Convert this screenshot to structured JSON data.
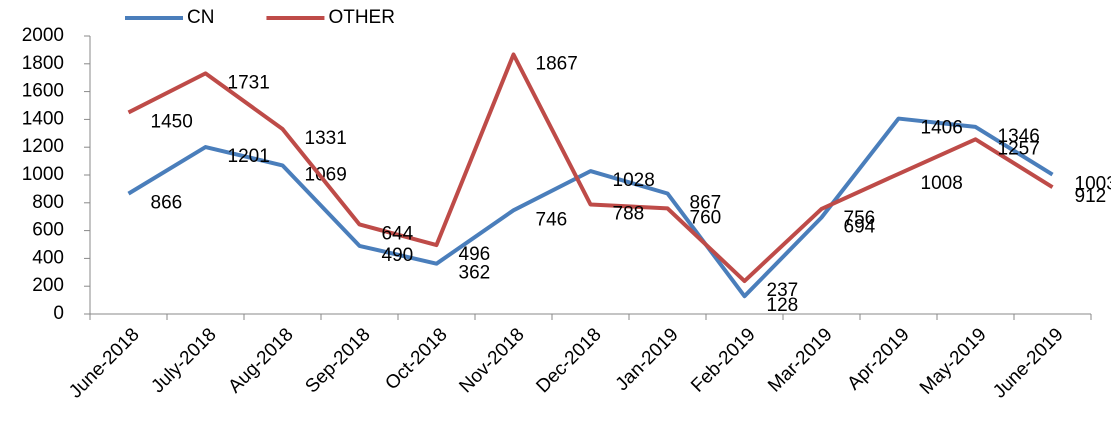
{
  "chart_data": {
    "type": "line",
    "categories": [
      "June-2018",
      "July-2018",
      "Aug-2018",
      "Sep-2018",
      "Oct-2018",
      "Nov-2018",
      "Dec-2018",
      "Jan-2019",
      "Feb-2019",
      "Mar-2019",
      "Apr-2019",
      "May-2019",
      "June-2019"
    ],
    "series": [
      {
        "name": "CN",
        "color": "#4a7ebb",
        "values": [
          866,
          1201,
          1069,
          490,
          362,
          746,
          1028,
          867,
          128,
          694,
          1406,
          1346,
          1003
        ]
      },
      {
        "name": "OTHER",
        "color": "#be4b48",
        "values": [
          1450,
          1731,
          1331,
          644,
          496,
          1867,
          788,
          760,
          237,
          756,
          1008,
          1257,
          912
        ]
      }
    ],
    "ylim": [
      0,
      2000
    ],
    "yticks": [
      0,
      200,
      400,
      600,
      800,
      1000,
      1200,
      1400,
      1600,
      1800,
      2000
    ],
    "legend": "top",
    "grid": false
  }
}
